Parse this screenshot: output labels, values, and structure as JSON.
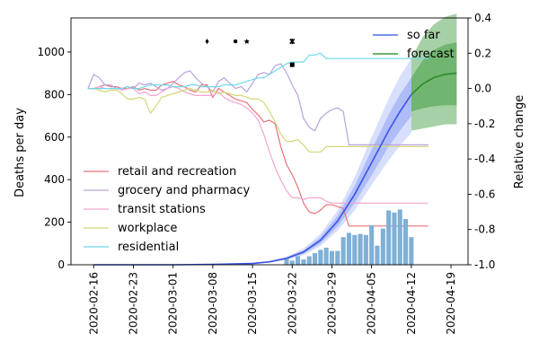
{
  "chart_data": {
    "type": "line",
    "ylabel": "Deaths per day",
    "y2label": "Relative change",
    "ylim": [
      0,
      1160
    ],
    "y2lim": [
      -1.0,
      0.4
    ],
    "yticks": [
      0,
      200,
      400,
      600,
      800,
      1000
    ],
    "y2ticks": [
      -1.0,
      -0.8,
      -0.6,
      -0.4,
      -0.2,
      0.0,
      0.2,
      0.4
    ],
    "xrange": [
      "2020-02-12",
      "2020-04-22"
    ],
    "xticks": [
      "2020-02-16",
      "2020-02-23",
      "2020-03-01",
      "2020-03-08",
      "2020-03-15",
      "2020-03-22",
      "2020-03-29",
      "2020-04-05",
      "2020-04-12",
      "2020-04-19"
    ],
    "legend_top": {
      "placement": "top-right",
      "entries": [
        {
          "label": "so far",
          "color": "#4c6cf0"
        },
        {
          "label": "forecast",
          "color": "#3a9a3a"
        }
      ]
    },
    "legend_mobility": {
      "placement": "center-left",
      "entries": [
        {
          "label": "retail and recreation",
          "color": "#e8737a"
        },
        {
          "label": "grocery and pharmacy",
          "color": "#b9a3dc"
        },
        {
          "label": "transit stations",
          "color": "#f2a6cf"
        },
        {
          "label": "workplace",
          "color": "#d4d77a"
        },
        {
          "label": "residential",
          "color": "#6fd8ea"
        }
      ]
    },
    "bars": {
      "name": "observed deaths",
      "color": "#7fb0d6",
      "x": [
        "2020-03-21",
        "2020-03-22",
        "2020-03-23",
        "2020-03-24",
        "2020-03-25",
        "2020-03-26",
        "2020-03-27",
        "2020-03-28",
        "2020-03-29",
        "2020-03-30",
        "2020-03-31",
        "2020-04-01",
        "2020-04-02",
        "2020-04-03",
        "2020-04-04",
        "2020-04-05",
        "2020-04-06",
        "2020-04-07",
        "2020-04-08",
        "2020-04-09",
        "2020-04-10",
        "2020-04-11",
        "2020-04-12"
      ],
      "values": [
        30,
        20,
        40,
        25,
        40,
        55,
        70,
        80,
        65,
        65,
        130,
        150,
        140,
        145,
        140,
        185,
        90,
        170,
        255,
        245,
        260,
        215,
        130
      ]
    },
    "so_far": {
      "x": [
        "2020-02-16",
        "2020-03-01",
        "2020-03-08",
        "2020-03-15",
        "2020-03-18",
        "2020-03-21",
        "2020-03-24",
        "2020-03-27",
        "2020-03-30",
        "2020-04-02",
        "2020-04-05",
        "2020-04-08",
        "2020-04-10",
        "2020-04-12"
      ],
      "values": [
        0,
        0,
        2,
        6,
        14,
        30,
        60,
        115,
        205,
        330,
        480,
        630,
        720,
        800
      ],
      "band_inner_lo": [
        0,
        0,
        2,
        5,
        12,
        26,
        52,
        100,
        180,
        290,
        420,
        555,
        630,
        700
      ],
      "band_inner_hi": [
        0,
        0,
        2,
        7,
        16,
        34,
        68,
        130,
        230,
        370,
        540,
        705,
        800,
        880
      ],
      "band_outer_lo": [
        0,
        0,
        1,
        4,
        10,
        22,
        45,
        88,
        160,
        255,
        375,
        490,
        560,
        620
      ],
      "band_outer_hi": [
        0,
        0,
        3,
        8,
        18,
        38,
        76,
        145,
        255,
        410,
        600,
        780,
        885,
        970
      ]
    },
    "forecast": {
      "x": [
        "2020-04-12",
        "2020-04-14",
        "2020-04-16",
        "2020-04-18",
        "2020-04-20"
      ],
      "values": [
        800,
        850,
        880,
        895,
        900
      ],
      "band_inner_lo": [
        720,
        735,
        745,
        750,
        750
      ],
      "band_inner_hi": [
        880,
        960,
        1010,
        1035,
        1045
      ],
      "band_outer_lo": [
        630,
        640,
        650,
        660,
        660
      ],
      "band_outer_hi": [
        970,
        1070,
        1130,
        1165,
        1180
      ]
    },
    "mobility": {
      "start": "2020-02-15",
      "series": [
        {
          "name": "retail and recreation",
          "color": "#e8737a",
          "values": [
            0.0,
            0.0,
            0.01,
            0.02,
            0.01,
            0.01,
            0.0,
            0.0,
            0.01,
            -0.01,
            0.0,
            -0.01,
            -0.01,
            0.02,
            0.03,
            0.04,
            0.02,
            0.01,
            -0.01,
            -0.02,
            0.02,
            0.02,
            -0.05,
            0.0,
            -0.02,
            -0.04,
            -0.06,
            -0.07,
            -0.08,
            -0.12,
            -0.15,
            -0.19,
            -0.18,
            -0.2,
            -0.33,
            -0.43,
            -0.49,
            -0.56,
            -0.65,
            -0.7,
            -0.71,
            -0.69,
            -0.66,
            -0.66,
            -0.67,
            -0.68,
            -0.78,
            -0.78,
            -0.78,
            -0.78,
            -0.78,
            -0.78,
            -0.78,
            -0.78,
            -0.78,
            -0.78,
            -0.78,
            -0.78,
            -0.78,
            -0.78,
            -0.78
          ]
        },
        {
          "name": "grocery and pharmacy",
          "color": "#b9a3dc",
          "values": [
            0.0,
            0.08,
            0.06,
            0.02,
            0.02,
            0.0,
            0.0,
            0.01,
            0.0,
            0.03,
            0.02,
            0.03,
            0.01,
            -0.01,
            0.0,
            0.03,
            0.06,
            0.09,
            0.1,
            0.06,
            0.03,
            0.01,
            -0.02,
            0.04,
            0.06,
            0.03,
            0.0,
            0.01,
            -0.02,
            0.03,
            0.08,
            0.09,
            0.08,
            0.13,
            0.14,
            0.09,
            0.02,
            -0.04,
            -0.17,
            -0.22,
            -0.24,
            -0.17,
            -0.14,
            -0.12,
            -0.11,
            -0.13,
            -0.32,
            -0.32,
            -0.32,
            -0.32,
            -0.32,
            -0.32,
            -0.32,
            -0.32,
            -0.32,
            -0.32,
            -0.32,
            -0.32,
            -0.32,
            -0.32,
            -0.32
          ]
        },
        {
          "name": "transit stations",
          "color": "#f2a6cf",
          "values": [
            0.0,
            0.0,
            0.01,
            0.0,
            0.0,
            0.0,
            -0.01,
            0.0,
            0.0,
            -0.03,
            -0.02,
            -0.04,
            -0.04,
            -0.02,
            0.0,
            0.01,
            0.0,
            -0.02,
            -0.03,
            -0.04,
            -0.04,
            -0.04,
            -0.04,
            -0.02,
            -0.05,
            -0.07,
            -0.08,
            -0.09,
            -0.11,
            -0.14,
            -0.18,
            -0.26,
            -0.36,
            -0.45,
            -0.52,
            -0.58,
            -0.62,
            -0.62,
            -0.63,
            -0.62,
            -0.62,
            -0.62,
            -0.64,
            -0.65,
            -0.65,
            -0.65,
            -0.65,
            -0.65,
            -0.65,
            -0.65,
            -0.65,
            -0.65,
            -0.65,
            -0.65,
            -0.65,
            -0.65,
            -0.65,
            -0.65,
            -0.65,
            -0.65,
            -0.65
          ]
        },
        {
          "name": "workplace",
          "color": "#d4d77a",
          "values": [
            0.0,
            0.0,
            -0.01,
            -0.02,
            -0.01,
            -0.01,
            -0.03,
            -0.06,
            -0.06,
            -0.05,
            -0.06,
            -0.14,
            -0.1,
            -0.05,
            -0.04,
            -0.03,
            -0.02,
            -0.01,
            0.0,
            -0.01,
            -0.02,
            -0.02,
            -0.01,
            -0.03,
            -0.02,
            -0.03,
            -0.04,
            -0.04,
            -0.05,
            -0.06,
            -0.06,
            -0.08,
            -0.13,
            -0.19,
            -0.26,
            -0.3,
            -0.3,
            -0.29,
            -0.32,
            -0.36,
            -0.36,
            -0.36,
            -0.33,
            -0.33,
            -0.33,
            -0.33,
            -0.33,
            -0.33,
            -0.33,
            -0.33,
            -0.33,
            -0.33,
            -0.33,
            -0.33,
            -0.33,
            -0.33,
            -0.33,
            -0.33,
            -0.33,
            -0.33,
            -0.33
          ]
        },
        {
          "name": "residential",
          "color": "#6fd8ea",
          "values": [
            0.0,
            0.0,
            0.0,
            0.0,
            0.0,
            0.0,
            0.0,
            0.01,
            0.0,
            0.0,
            0.01,
            0.02,
            0.02,
            0.02,
            0.02,
            0.01,
            0.01,
            0.01,
            0.02,
            0.02,
            0.01,
            0.01,
            0.01,
            0.01,
            0.02,
            0.02,
            0.02,
            0.03,
            0.04,
            0.05,
            0.06,
            0.06,
            0.08,
            0.1,
            0.12,
            0.14,
            0.15,
            0.15,
            0.15,
            0.19,
            0.19,
            0.2,
            0.17,
            0.17,
            0.17,
            0.17,
            0.17,
            0.17,
            0.17,
            0.17,
            0.17,
            0.17,
            0.17,
            0.17,
            0.17,
            0.17,
            0.17,
            0.17,
            0.17,
            0.17,
            0.17
          ]
        }
      ]
    },
    "markers": [
      {
        "x": "2020-03-07",
        "y": 1050,
        "symbol": "diamond"
      },
      {
        "x": "2020-03-12",
        "y": 1050,
        "symbol": "circle"
      },
      {
        "x": "2020-03-14",
        "y": 1050,
        "symbol": "star"
      },
      {
        "x": "2020-03-22",
        "y": 1050,
        "symbol": "cross"
      },
      {
        "x": "2020-03-22",
        "y": 940,
        "symbol": "square"
      }
    ]
  }
}
